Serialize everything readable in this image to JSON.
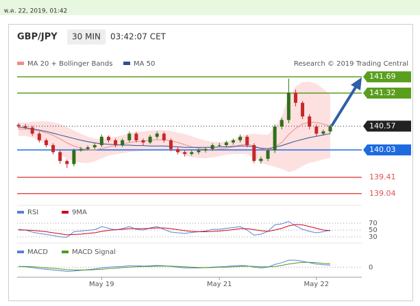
{
  "header": {
    "datetime": "พ.ค. 22, 2019, 01:42"
  },
  "chart_data": {
    "type": "candlestick",
    "symbol": "GBP/JPY",
    "timeframe": "30 MIN",
    "time": "03:42:07 CET",
    "credit": "Research © 2019 Trading Central",
    "categories": [
      null,
      null,
      null,
      null,
      null,
      null,
      null,
      null,
      null,
      null,
      null,
      null,
      "May 19",
      null,
      null,
      null,
      null,
      null,
      null,
      null,
      null,
      null,
      null,
      null,
      null,
      null,
      null,
      null,
      null,
      "May 21",
      null,
      null,
      null,
      null,
      null,
      null,
      null,
      null,
      null,
      null,
      null,
      null,
      null,
      "May 22",
      null,
      null
    ],
    "open": [
      140.6,
      140.57,
      140.54,
      140.4,
      140.25,
      140.14,
      139.98,
      139.78,
      139.71,
      140.02,
      140.05,
      140.09,
      140.14,
      140.33,
      140.25,
      140.14,
      140.25,
      140.4,
      140.25,
      140.2,
      140.33,
      140.4,
      140.25,
      140.05,
      139.98,
      139.94,
      139.98,
      140.02,
      140.05,
      140.14,
      140.14,
      140.2,
      140.25,
      140.33,
      140.14,
      139.78,
      139.83,
      140.02,
      140.56,
      140.71,
      141.33,
      141.1,
      140.79,
      140.56,
      140.4,
      140.45
    ],
    "high": [
      140.64,
      140.62,
      140.58,
      140.44,
      140.29,
      140.18,
      140.02,
      139.82,
      140.06,
      140.1,
      140.13,
      140.19,
      140.38,
      140.36,
      140.29,
      140.29,
      140.45,
      140.44,
      140.29,
      140.37,
      140.45,
      140.44,
      140.29,
      140.09,
      140.02,
      140.03,
      140.06,
      140.09,
      140.18,
      140.19,
      140.24,
      140.29,
      140.38,
      140.37,
      140.18,
      139.88,
      140.06,
      140.61,
      140.76,
      141.65,
      141.4,
      141.14,
      140.84,
      140.61,
      140.49,
      140.61
    ],
    "low": [
      140.52,
      140.5,
      140.35,
      140.2,
      140.09,
      139.93,
      139.72,
      139.62,
      139.66,
      139.99,
      140.02,
      140.05,
      140.1,
      140.2,
      140.09,
      140.1,
      140.21,
      140.2,
      140.14,
      140.16,
      140.28,
      140.2,
      140.0,
      139.93,
      139.88,
      139.9,
      139.93,
      139.97,
      140.01,
      140.09,
      140.09,
      140.15,
      140.2,
      140.09,
      139.73,
      139.72,
      139.78,
      139.96,
      140.5,
      140.64,
      141.02,
      140.73,
      140.5,
      140.35,
      140.36,
      140.4
    ],
    "close": [
      140.57,
      140.54,
      140.4,
      140.25,
      140.14,
      139.98,
      139.78,
      139.71,
      140.02,
      140.05,
      140.09,
      140.14,
      140.33,
      140.25,
      140.14,
      140.25,
      140.4,
      140.25,
      140.2,
      140.33,
      140.4,
      140.25,
      140.05,
      139.98,
      139.94,
      139.98,
      140.02,
      140.05,
      140.14,
      140.14,
      140.2,
      140.25,
      140.33,
      140.14,
      139.78,
      139.83,
      140.02,
      140.56,
      140.71,
      141.33,
      141.1,
      140.79,
      140.56,
      140.4,
      140.45,
      140.57
    ],
    "up_color": "#2e6f1a",
    "down_color": "#c62828",
    "ylim": [
      138.85,
      141.88
    ],
    "series": [
      {
        "name": "MA 20 + Bollinger Bands",
        "color": "#f08c8c",
        "band_color": "#fde0e0",
        "values": [
          140.5,
          140.5,
          140.49,
          140.46,
          140.42,
          140.36,
          140.28,
          140.19,
          140.12,
          140.07,
          140.03,
          140.03,
          140.06,
          140.1,
          140.13,
          140.16,
          140.2,
          140.22,
          140.23,
          140.25,
          140.26,
          140.26,
          140.24,
          140.2,
          140.15,
          140.1,
          140.07,
          140.04,
          140.04,
          140.05,
          140.07,
          140.1,
          140.14,
          140.16,
          140.12,
          140.06,
          140.03,
          140.1,
          140.2,
          140.38,
          140.52,
          140.62,
          140.66,
          140.65,
          140.62,
          140.57
        ],
        "upper": [
          140.65,
          140.65,
          140.67,
          140.68,
          140.68,
          140.66,
          140.62,
          140.55,
          140.47,
          140.4,
          140.33,
          140.29,
          140.28,
          140.3,
          140.33,
          140.36,
          140.42,
          140.44,
          140.45,
          140.47,
          140.48,
          140.48,
          140.46,
          140.42,
          140.39,
          140.34,
          140.29,
          140.24,
          140.22,
          140.21,
          140.22,
          140.26,
          140.34,
          140.38,
          140.4,
          140.38,
          140.37,
          140.55,
          140.8,
          141.23,
          141.47,
          141.57,
          141.58,
          141.53,
          141.42,
          141.29
        ],
        "lower": [
          140.35,
          140.35,
          140.31,
          140.24,
          140.16,
          140.06,
          139.94,
          139.83,
          139.77,
          139.74,
          139.73,
          139.77,
          139.84,
          139.9,
          139.93,
          139.96,
          139.98,
          140.0,
          140.01,
          140.03,
          140.04,
          140.04,
          140.02,
          139.98,
          139.91,
          139.86,
          139.85,
          139.84,
          139.86,
          139.89,
          139.92,
          139.94,
          139.94,
          139.94,
          139.84,
          139.74,
          139.69,
          139.65,
          139.6,
          139.53,
          139.57,
          139.67,
          139.74,
          139.77,
          139.82,
          139.85
        ]
      },
      {
        "name": "MA 50",
        "color": "#2f4f8f",
        "values": [
          140.55,
          140.53,
          140.51,
          140.48,
          140.45,
          140.41,
          140.37,
          140.33,
          140.29,
          140.25,
          140.22,
          140.19,
          140.17,
          140.16,
          140.15,
          140.14,
          140.14,
          140.13,
          140.13,
          140.12,
          140.12,
          140.12,
          140.11,
          140.1,
          140.09,
          140.09,
          140.09,
          140.09,
          140.09,
          140.1,
          140.1,
          140.11,
          140.12,
          140.12,
          140.1,
          140.07,
          140.06,
          140.09,
          140.13,
          140.18,
          140.23,
          140.27,
          140.31,
          140.34,
          140.37,
          140.4
        ]
      }
    ],
    "levels": [
      {
        "value": 141.69,
        "color": "#5a9e1e",
        "label_style": "box",
        "line": "solid"
      },
      {
        "value": 141.32,
        "color": "#5a9e1e",
        "label_style": "box",
        "line": "solid"
      },
      {
        "value": 140.57,
        "color": "#222222",
        "label_style": "box",
        "line": "dotted"
      },
      {
        "value": 140.03,
        "color": "#1e6be0",
        "label_style": "box",
        "line": "solid"
      },
      {
        "value": 139.41,
        "color": "#e05050",
        "label_style": "text",
        "line": "solid"
      },
      {
        "value": 139.04,
        "color": "#e05050",
        "label_style": "text",
        "line": "solid"
      }
    ],
    "rsi": {
      "type": "line",
      "ylim": [
        26,
        86
      ],
      "yticks": [
        70,
        50,
        30
      ],
      "series": [
        {
          "name": "RSI",
          "color": "#5b7fd6",
          "values": [
            52,
            50,
            44,
            40,
            37,
            34,
            30,
            29,
            45,
            47,
            49,
            51,
            60,
            55,
            50,
            54,
            60,
            52,
            50,
            56,
            60,
            52,
            44,
            42,
            40,
            43,
            45,
            47,
            52,
            52,
            55,
            57,
            60,
            50,
            35,
            38,
            46,
            65,
            68,
            75,
            62,
            52,
            46,
            42,
            45,
            50
          ]
        },
        {
          "name": "9MA",
          "color": "#d0021b",
          "values": [
            50,
            50,
            49,
            47,
            45,
            42,
            39,
            36,
            37,
            38,
            40,
            42,
            46,
            49,
            51,
            52,
            54,
            54,
            54,
            55,
            56,
            56,
            54,
            51,
            48,
            46,
            45,
            45,
            46,
            47,
            49,
            51,
            54,
            54,
            51,
            48,
            46,
            50,
            55,
            62,
            66,
            65,
            60,
            55,
            50,
            48
          ]
        }
      ]
    },
    "macd": {
      "type": "line",
      "ylim": [
        -0.25,
        0.4
      ],
      "yticks": [
        0
      ],
      "series": [
        {
          "name": "MACD",
          "color": "#5b7fd6",
          "values": [
            0.02,
            0.01,
            -0.01,
            -0.04,
            -0.06,
            -0.08,
            -0.1,
            -0.12,
            -0.11,
            -0.09,
            -0.07,
            -0.05,
            -0.02,
            0.0,
            0.01,
            0.02,
            0.04,
            0.04,
            0.03,
            0.04,
            0.05,
            0.04,
            0.02,
            0.0,
            -0.02,
            -0.02,
            -0.02,
            -0.01,
            0.0,
            0.01,
            0.02,
            0.04,
            0.05,
            0.04,
            0.0,
            -0.02,
            0.0,
            0.08,
            0.13,
            0.2,
            0.2,
            0.17,
            0.13,
            0.09,
            0.07,
            0.06
          ]
        },
        {
          "name": "MACD Signal",
          "color": "#4e9a1e",
          "values": [
            0.02,
            0.02,
            0.01,
            0.0,
            -0.02,
            -0.03,
            -0.05,
            -0.07,
            -0.08,
            -0.08,
            -0.08,
            -0.07,
            -0.06,
            -0.04,
            -0.03,
            -0.01,
            0.0,
            0.01,
            0.02,
            0.02,
            0.03,
            0.03,
            0.03,
            0.02,
            0.01,
            0.0,
            -0.01,
            -0.01,
            -0.01,
            0.0,
            0.0,
            0.01,
            0.02,
            0.03,
            0.02,
            0.01,
            0.01,
            0.02,
            0.05,
            0.09,
            0.12,
            0.14,
            0.14,
            0.13,
            0.11,
            0.1
          ]
        }
      ]
    }
  }
}
